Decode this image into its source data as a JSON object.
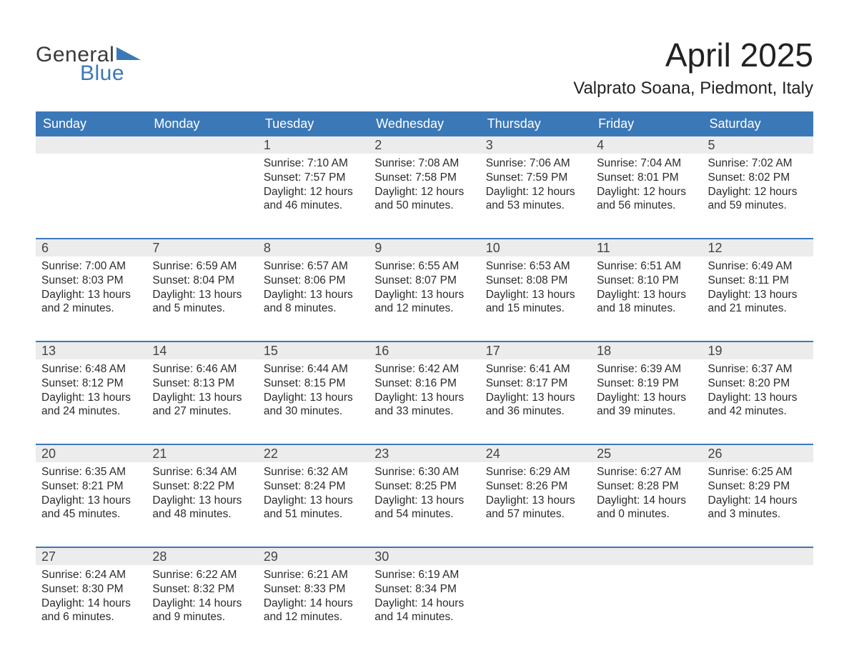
{
  "logo": {
    "text1": "General",
    "text2": "Blue",
    "triangle_color": "#3b78b8"
  },
  "title": "April 2025",
  "location": "Valprato Soana, Piedmont, Italy",
  "colors": {
    "header_bg": "#3b78b8",
    "header_text": "#ffffff",
    "daynum_bg": "#ececec",
    "text": "#2b2b2b",
    "rule": "#3b78b8"
  },
  "weekdays": [
    "Sunday",
    "Monday",
    "Tuesday",
    "Wednesday",
    "Thursday",
    "Friday",
    "Saturday"
  ],
  "weeks": [
    [
      {
        "n": "",
        "lines": []
      },
      {
        "n": "",
        "lines": []
      },
      {
        "n": "1",
        "lines": [
          "Sunrise: 7:10 AM",
          "Sunset: 7:57 PM",
          "Daylight: 12 hours and 46 minutes."
        ]
      },
      {
        "n": "2",
        "lines": [
          "Sunrise: 7:08 AM",
          "Sunset: 7:58 PM",
          "Daylight: 12 hours and 50 minutes."
        ]
      },
      {
        "n": "3",
        "lines": [
          "Sunrise: 7:06 AM",
          "Sunset: 7:59 PM",
          "Daylight: 12 hours and 53 minutes."
        ]
      },
      {
        "n": "4",
        "lines": [
          "Sunrise: 7:04 AM",
          "Sunset: 8:01 PM",
          "Daylight: 12 hours and 56 minutes."
        ]
      },
      {
        "n": "5",
        "lines": [
          "Sunrise: 7:02 AM",
          "Sunset: 8:02 PM",
          "Daylight: 12 hours and 59 minutes."
        ]
      }
    ],
    [
      {
        "n": "6",
        "lines": [
          "Sunrise: 7:00 AM",
          "Sunset: 8:03 PM",
          "Daylight: 13 hours and 2 minutes."
        ]
      },
      {
        "n": "7",
        "lines": [
          "Sunrise: 6:59 AM",
          "Sunset: 8:04 PM",
          "Daylight: 13 hours and 5 minutes."
        ]
      },
      {
        "n": "8",
        "lines": [
          "Sunrise: 6:57 AM",
          "Sunset: 8:06 PM",
          "Daylight: 13 hours and 8 minutes."
        ]
      },
      {
        "n": "9",
        "lines": [
          "Sunrise: 6:55 AM",
          "Sunset: 8:07 PM",
          "Daylight: 13 hours and 12 minutes."
        ]
      },
      {
        "n": "10",
        "lines": [
          "Sunrise: 6:53 AM",
          "Sunset: 8:08 PM",
          "Daylight: 13 hours and 15 minutes."
        ]
      },
      {
        "n": "11",
        "lines": [
          "Sunrise: 6:51 AM",
          "Sunset: 8:10 PM",
          "Daylight: 13 hours and 18 minutes."
        ]
      },
      {
        "n": "12",
        "lines": [
          "Sunrise: 6:49 AM",
          "Sunset: 8:11 PM",
          "Daylight: 13 hours and 21 minutes."
        ]
      }
    ],
    [
      {
        "n": "13",
        "lines": [
          "Sunrise: 6:48 AM",
          "Sunset: 8:12 PM",
          "Daylight: 13 hours and 24 minutes."
        ]
      },
      {
        "n": "14",
        "lines": [
          "Sunrise: 6:46 AM",
          "Sunset: 8:13 PM",
          "Daylight: 13 hours and 27 minutes."
        ]
      },
      {
        "n": "15",
        "lines": [
          "Sunrise: 6:44 AM",
          "Sunset: 8:15 PM",
          "Daylight: 13 hours and 30 minutes."
        ]
      },
      {
        "n": "16",
        "lines": [
          "Sunrise: 6:42 AM",
          "Sunset: 8:16 PM",
          "Daylight: 13 hours and 33 minutes."
        ]
      },
      {
        "n": "17",
        "lines": [
          "Sunrise: 6:41 AM",
          "Sunset: 8:17 PM",
          "Daylight: 13 hours and 36 minutes."
        ]
      },
      {
        "n": "18",
        "lines": [
          "Sunrise: 6:39 AM",
          "Sunset: 8:19 PM",
          "Daylight: 13 hours and 39 minutes."
        ]
      },
      {
        "n": "19",
        "lines": [
          "Sunrise: 6:37 AM",
          "Sunset: 8:20 PM",
          "Daylight: 13 hours and 42 minutes."
        ]
      }
    ],
    [
      {
        "n": "20",
        "lines": [
          "Sunrise: 6:35 AM",
          "Sunset: 8:21 PM",
          "Daylight: 13 hours and 45 minutes."
        ]
      },
      {
        "n": "21",
        "lines": [
          "Sunrise: 6:34 AM",
          "Sunset: 8:22 PM",
          "Daylight: 13 hours and 48 minutes."
        ]
      },
      {
        "n": "22",
        "lines": [
          "Sunrise: 6:32 AM",
          "Sunset: 8:24 PM",
          "Daylight: 13 hours and 51 minutes."
        ]
      },
      {
        "n": "23",
        "lines": [
          "Sunrise: 6:30 AM",
          "Sunset: 8:25 PM",
          "Daylight: 13 hours and 54 minutes."
        ]
      },
      {
        "n": "24",
        "lines": [
          "Sunrise: 6:29 AM",
          "Sunset: 8:26 PM",
          "Daylight: 13 hours and 57 minutes."
        ]
      },
      {
        "n": "25",
        "lines": [
          "Sunrise: 6:27 AM",
          "Sunset: 8:28 PM",
          "Daylight: 14 hours and 0 minutes."
        ]
      },
      {
        "n": "26",
        "lines": [
          "Sunrise: 6:25 AM",
          "Sunset: 8:29 PM",
          "Daylight: 14 hours and 3 minutes."
        ]
      }
    ],
    [
      {
        "n": "27",
        "lines": [
          "Sunrise: 6:24 AM",
          "Sunset: 8:30 PM",
          "Daylight: 14 hours and 6 minutes."
        ]
      },
      {
        "n": "28",
        "lines": [
          "Sunrise: 6:22 AM",
          "Sunset: 8:32 PM",
          "Daylight: 14 hours and 9 minutes."
        ]
      },
      {
        "n": "29",
        "lines": [
          "Sunrise: 6:21 AM",
          "Sunset: 8:33 PM",
          "Daylight: 14 hours and 12 minutes."
        ]
      },
      {
        "n": "30",
        "lines": [
          "Sunrise: 6:19 AM",
          "Sunset: 8:34 PM",
          "Daylight: 14 hours and 14 minutes."
        ]
      },
      {
        "n": "",
        "lines": []
      },
      {
        "n": "",
        "lines": []
      },
      {
        "n": "",
        "lines": []
      }
    ]
  ]
}
